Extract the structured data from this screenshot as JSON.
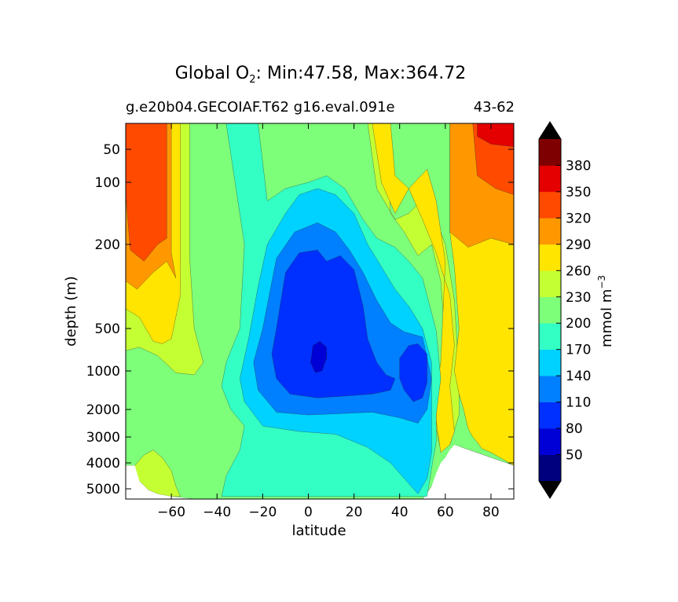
{
  "chart_data": {
    "type": "heatmap",
    "title": "Global O",
    "title_subscript": "2",
    "title_suffix": ": Min:47.58, Max:364.72",
    "subtitle_left": "g.e20b04.GECOIAF.T62 g16.eval.091e",
    "subtitle_right": "43-62",
    "xlabel": "latitude",
    "ylabel": "depth (m)",
    "xlim": [
      -80,
      90
    ],
    "ylim": [
      5400,
      0
    ],
    "y_scale": "nonlinear (expanded upper ocean)",
    "x_ticks": [
      -60,
      -40,
      -20,
      0,
      20,
      40,
      60,
      80
    ],
    "x_tick_labels": [
      "−60",
      "−40",
      "−20",
      "0",
      "20",
      "40",
      "60",
      "80"
    ],
    "y_ticks": [
      50,
      100,
      200,
      500,
      1000,
      2000,
      3000,
      4000,
      5000
    ],
    "y_tick_labels": [
      "50",
      "100",
      "200",
      "500",
      "1000",
      "2000",
      "3000",
      "4000",
      "5000"
    ],
    "min": 47.58,
    "max": 364.72,
    "colorbar": {
      "label_main": "mmol m",
      "label_exp": "−3",
      "levels": [
        20,
        50,
        80,
        110,
        140,
        170,
        200,
        230,
        260,
        290,
        320,
        350,
        380,
        410
      ],
      "tick_labels": [
        "50",
        "80",
        "110",
        "140",
        "170",
        "200",
        "230",
        "260",
        "290",
        "320",
        "350",
        "380"
      ],
      "colors": [
        "#00007f",
        "#0000d6",
        "#0030ff",
        "#0080ff",
        "#00d2ff",
        "#33ffc4",
        "#7dff7a",
        "#c4ff33",
        "#ffe500",
        "#ff9800",
        "#ff4a00",
        "#e40000",
        "#7f0000"
      ],
      "extend_colors": {
        "min": "#000000",
        "max": "#000000"
      }
    },
    "ocean_floor": [
      [
        -80,
        4100
      ],
      [
        -76,
        4100
      ],
      [
        -74,
        4700
      ],
      [
        -70,
        5050
      ],
      [
        -66,
        5200
      ],
      [
        -60,
        5300
      ],
      [
        -50,
        5400
      ],
      [
        50,
        5400
      ],
      [
        52,
        5300
      ],
      [
        54,
        4900
      ],
      [
        56,
        4400
      ],
      [
        58,
        4000
      ],
      [
        60,
        3800
      ],
      [
        62,
        3500
      ],
      [
        64,
        3300
      ],
      [
        70,
        3500
      ],
      [
        76,
        3700
      ],
      [
        80,
        4000
      ],
      [
        84,
        4100
      ],
      [
        90,
        4100
      ]
    ],
    "contour_levels": [
      {
        "value": 290,
        "polys": [
          [
            [
              -80,
              0
            ],
            [
              -60,
              0
            ],
            [
              -60,
              230
            ],
            [
              -58,
              320
            ],
            [
              -62,
              260
            ],
            [
              -68,
              300
            ],
            [
              -75,
              360
            ],
            [
              -80,
              330
            ]
          ],
          [
            [
              62,
              0
            ],
            [
              90,
              0
            ],
            [
              90,
              200
            ],
            [
              80,
              190
            ],
            [
              70,
              210
            ],
            [
              62,
              180
            ]
          ]
        ]
      },
      {
        "value": 320,
        "polys": [
          [
            [
              -80,
              0
            ],
            [
              -62,
              0
            ],
            [
              -62,
              190
            ],
            [
              -66,
              200
            ],
            [
              -72,
              260
            ],
            [
              -78,
              220
            ],
            [
              -80,
              120
            ]
          ],
          [
            [
              72,
              0
            ],
            [
              90,
              0
            ],
            [
              90,
              120
            ],
            [
              82,
              110
            ],
            [
              74,
              90
            ]
          ]
        ]
      },
      {
        "value": 350,
        "polys": [
          [
            [
              74,
              0
            ],
            [
              90,
              0
            ],
            [
              90,
              45
            ],
            [
              80,
              40
            ],
            [
              74,
              25
            ]
          ]
        ]
      },
      {
        "value": 260,
        "polys": [
          [
            [
              -80,
              0
            ],
            [
              -56,
              0
            ],
            [
              -56,
              380
            ],
            [
              -60,
              620
            ],
            [
              -64,
              680
            ],
            [
              -68,
              650
            ],
            [
              -74,
              460
            ],
            [
              -80,
              430
            ]
          ],
          [
            [
              28,
              0
            ],
            [
              36,
              0
            ],
            [
              38,
              90
            ],
            [
              44,
              110
            ],
            [
              52,
              80
            ],
            [
              56,
              130
            ],
            [
              60,
              260
            ],
            [
              58,
              900
            ],
            [
              56,
              1500
            ],
            [
              56,
              2400
            ],
            [
              58,
              3600
            ],
            [
              62,
              3300
            ],
            [
              64,
              2800
            ],
            [
              62,
              1400
            ],
            [
              64,
              700
            ],
            [
              62,
              380
            ],
            [
              56,
              230
            ],
            [
              50,
              160
            ],
            [
              44,
              110
            ],
            [
              38,
              150
            ],
            [
              32,
              100
            ]
          ],
          [
            [
              62,
              0
            ],
            [
              90,
              0
            ],
            [
              90,
              4100
            ],
            [
              84,
              3800
            ],
            [
              80,
              3600
            ],
            [
              76,
              3450
            ],
            [
              74,
              3200
            ],
            [
              72,
              3000
            ],
            [
              70,
              2700
            ],
            [
              68,
              2000
            ],
            [
              66,
              1600
            ],
            [
              64,
              1000
            ],
            [
              66,
              500
            ],
            [
              64,
              280
            ],
            [
              62,
              180
            ]
          ]
        ]
      },
      {
        "value": 230,
        "polys": [
          [
            [
              -80,
              0
            ],
            [
              -52,
              0
            ],
            [
              -52,
              250
            ],
            [
              -50,
              500
            ],
            [
              -46,
              900
            ],
            [
              -50,
              1100
            ],
            [
              -58,
              1050
            ],
            [
              -66,
              820
            ],
            [
              -74,
              720
            ],
            [
              -80,
              760
            ]
          ],
          [
            [
              26,
              0
            ],
            [
              34,
              0
            ],
            [
              36,
              150
            ],
            [
              42,
              180
            ],
            [
              48,
              240
            ],
            [
              54,
              200
            ],
            [
              58,
              330
            ],
            [
              60,
              640
            ],
            [
              58,
              1100
            ],
            [
              56,
              1900
            ],
            [
              56,
              2700
            ],
            [
              58,
              3500
            ],
            [
              62,
              3300
            ],
            [
              66,
              2200
            ],
            [
              66,
              1200
            ],
            [
              64,
              400
            ],
            [
              60,
              200
            ],
            [
              52,
              120
            ],
            [
              44,
              150
            ],
            [
              38,
              160
            ],
            [
              30,
              110
            ]
          ],
          [
            [
              -80,
              4100
            ],
            [
              -76,
              4100
            ],
            [
              -72,
              3700
            ],
            [
              -68,
              3500
            ],
            [
              -64,
              3800
            ],
            [
              -60,
              4300
            ],
            [
              -58,
              4900
            ],
            [
              -56,
              5300
            ],
            [
              -60,
              5300
            ],
            [
              -66,
              5200
            ],
            [
              -70,
              5050
            ],
            [
              -74,
              4700
            ],
            [
              -80,
              4400
            ]
          ]
        ]
      },
      {
        "value": 200,
        "polys": [
          [
            [
              -80,
              0
            ],
            [
              90,
              0
            ],
            [
              90,
              4100
            ],
            [
              64,
              3300
            ],
            [
              60,
              3800
            ],
            [
              54,
              4900
            ],
            [
              50,
              5400
            ],
            [
              -50,
              5400
            ],
            [
              -60,
              5300
            ],
            [
              -66,
              5200
            ],
            [
              -70,
              5050
            ],
            [
              -74,
              4700
            ],
            [
              -76,
              4100
            ],
            [
              -80,
              4100
            ]
          ]
        ]
      },
      {
        "value": 170,
        "polys": [
          [
            [
              -36,
              0
            ],
            [
              -22,
              0
            ],
            [
              -18,
              130
            ],
            [
              -10,
              110
            ],
            [
              0,
              100
            ],
            [
              8,
              90
            ],
            [
              16,
              110
            ],
            [
              24,
              160
            ],
            [
              30,
              190
            ],
            [
              38,
              210
            ],
            [
              44,
              260
            ],
            [
              50,
              320
            ],
            [
              56,
              520
            ],
            [
              58,
              1200
            ],
            [
              56,
              2200
            ],
            [
              56,
              3200
            ],
            [
              54,
              4200
            ],
            [
              52,
              5300
            ],
            [
              -38,
              5300
            ],
            [
              -36,
              4500
            ],
            [
              -30,
              3500
            ],
            [
              -28,
              2600
            ],
            [
              -34,
              2000
            ],
            [
              -38,
              1400
            ],
            [
              -36,
              900
            ],
            [
              -30,
              500
            ],
            [
              -28,
              200
            ]
          ]
        ]
      },
      {
        "value": 140,
        "polys": [
          [
            [
              -18,
              200
            ],
            [
              -10,
              150
            ],
            [
              -4,
              120
            ],
            [
              4,
              110
            ],
            [
              12,
              120
            ],
            [
              20,
              150
            ],
            [
              26,
              200
            ],
            [
              32,
              280
            ],
            [
              38,
              360
            ],
            [
              44,
              420
            ],
            [
              50,
              500
            ],
            [
              54,
              900
            ],
            [
              54,
              1700
            ],
            [
              54,
              2600
            ],
            [
              54,
              3600
            ],
            [
              52,
              4600
            ],
            [
              48,
              5200
            ],
            [
              44,
              4800
            ],
            [
              36,
              4000
            ],
            [
              26,
              3400
            ],
            [
              12,
              2900
            ],
            [
              -4,
              2800
            ],
            [
              -20,
              2600
            ],
            [
              -28,
              1800
            ],
            [
              -30,
              1200
            ],
            [
              -26,
              600
            ],
            [
              -22,
              350
            ]
          ]
        ]
      },
      {
        "value": 110,
        "polys": [
          [
            [
              -14,
              250
            ],
            [
              -6,
              180
            ],
            [
              4,
              165
            ],
            [
              12,
              180
            ],
            [
              18,
              220
            ],
            [
              24,
              300
            ],
            [
              30,
              400
            ],
            [
              36,
              480
            ],
            [
              42,
              540
            ],
            [
              50,
              600
            ],
            [
              54,
              1200
            ],
            [
              52,
              2000
            ],
            [
              48,
              2500
            ],
            [
              40,
              2300
            ],
            [
              28,
              2100
            ],
            [
              14,
              2150
            ],
            [
              0,
              2200
            ],
            [
              -14,
              2100
            ],
            [
              -22,
              1500
            ],
            [
              -24,
              900
            ],
            [
              -20,
              500
            ]
          ]
        ]
      },
      {
        "value": 80,
        "polys": [
          [
            [
              -10,
              300
            ],
            [
              -4,
              230
            ],
            [
              4,
              220
            ],
            [
              8,
              260
            ],
            [
              14,
              240
            ],
            [
              20,
              290
            ],
            [
              24,
              420
            ],
            [
              26,
              620
            ],
            [
              30,
              900
            ],
            [
              34,
              1100
            ],
            [
              38,
              1200
            ],
            [
              36,
              1500
            ],
            [
              28,
              1600
            ],
            [
              16,
              1650
            ],
            [
              4,
              1700
            ],
            [
              -8,
              1600
            ],
            [
              -14,
              1200
            ],
            [
              -16,
              800
            ],
            [
              -14,
              500
            ]
          ],
          [
            [
              40,
              850
            ],
            [
              44,
              700
            ],
            [
              48,
              680
            ],
            [
              52,
              800
            ],
            [
              52,
              1300
            ],
            [
              50,
              1700
            ],
            [
              46,
              1800
            ],
            [
              42,
              1500
            ],
            [
              40,
              1200
            ]
          ]
        ]
      },
      {
        "value": 50,
        "polys": [
          [
            [
              2,
              700
            ],
            [
              5,
              650
            ],
            [
              8,
              720
            ],
            [
              8,
              850
            ],
            [
              6,
              1000
            ],
            [
              3,
              1050
            ],
            [
              1,
              900
            ]
          ]
        ]
      }
    ]
  }
}
